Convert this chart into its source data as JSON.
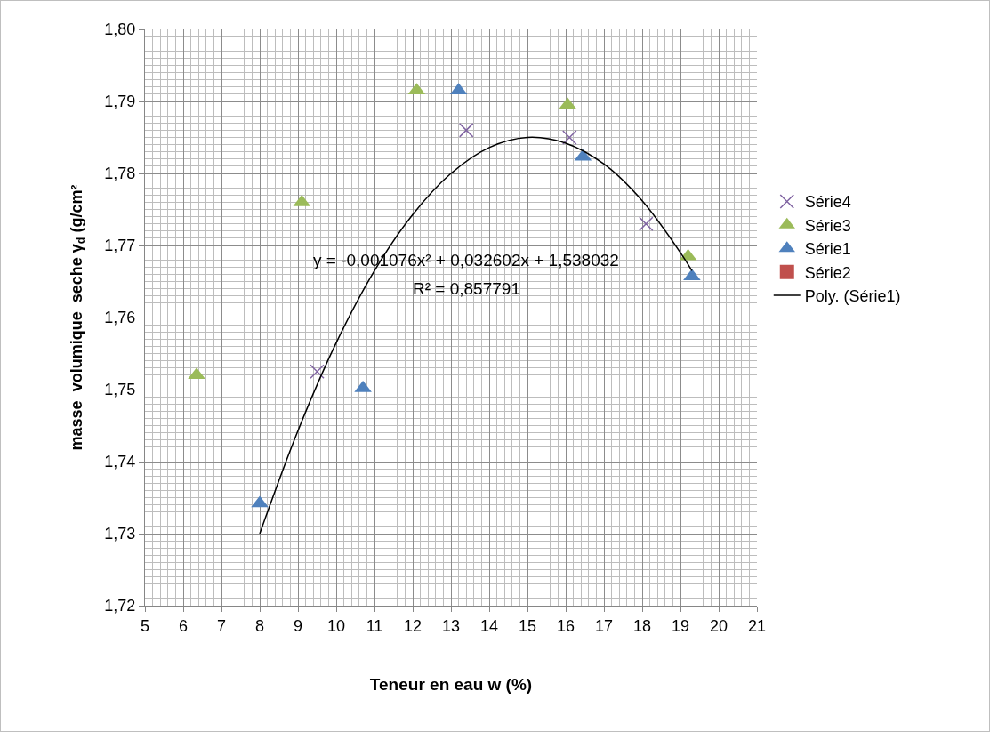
{
  "chart_data": {
    "type": "scatter",
    "xlabel": "Teneur en eau w (%)",
    "ylabel": "masse  volumique  seche γ$_{d}$ (g/cm²",
    "xlim": [
      5,
      21
    ],
    "xticks": [
      5,
      6,
      7,
      8,
      9,
      10,
      11,
      12,
      13,
      14,
      15,
      16,
      17,
      18,
      19,
      20,
      21
    ],
    "ylim": [
      1.72,
      1.8
    ],
    "yticks": [
      {
        "value": 1.72,
        "label": "1,72"
      },
      {
        "value": 1.73,
        "label": "1,73"
      },
      {
        "value": 1.74,
        "label": "1,74"
      },
      {
        "value": 1.75,
        "label": "1,75"
      },
      {
        "value": 1.76,
        "label": "1,76"
      },
      {
        "value": 1.77,
        "label": "1,77"
      },
      {
        "value": 1.78,
        "label": "1,78"
      },
      {
        "value": 1.79,
        "label": "1,79"
      },
      {
        "value": 1.8,
        "label": "1,80"
      }
    ],
    "grid": true,
    "legend": "right",
    "series": [
      {
        "name": "Série4",
        "color": "#8064a2",
        "marker": "cross",
        "x": [
          9.5,
          13.4,
          16.1,
          18.1
        ],
        "values": [
          1.7525,
          1.786,
          1.785,
          1.773
        ]
      },
      {
        "name": "Série3",
        "color": "#9bbb59",
        "marker": "triangle",
        "x": [
          6.35,
          9.1,
          12.1,
          16.05,
          19.2
        ],
        "values": [
          1.752,
          1.776,
          1.7915,
          1.7895,
          1.7685
        ]
      },
      {
        "name": "Série1",
        "color": "#4f81bd",
        "marker": "triangle",
        "x": [
          8.0,
          10.7,
          13.2,
          16.45,
          19.3
        ],
        "values": [
          1.7342,
          1.7502,
          1.7915,
          1.7823,
          1.7657
        ]
      },
      {
        "name": "Série2",
        "color": "#c0504d",
        "marker": "square"
      },
      {
        "name": "Poly. (Série1)",
        "type": "line",
        "color": "#000000",
        "marker": "none",
        "line_style": "solid",
        "x": [
          8,
          9,
          10,
          11,
          12,
          13,
          14,
          15,
          16,
          17,
          18,
          19,
          19.3
        ],
        "values": [
          1.73,
          1.7443,
          1.7565,
          1.7665,
          1.7743,
          1.78,
          1.7836,
          1.785,
          1.7842,
          1.7813,
          1.7762,
          1.769,
          1.7665
        ]
      }
    ],
    "annotations": [
      "y = -0,001076x² + 0,032602x + 1,538032",
      "R² = 0,857791"
    ]
  }
}
